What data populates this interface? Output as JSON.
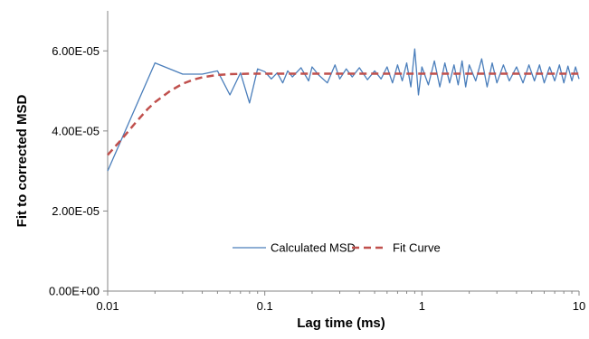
{
  "chart_data": {
    "type": "line",
    "title": "",
    "xlabel": "Lag time (ms)",
    "ylabel": "Fit to corrected MSD",
    "x_scale": "log",
    "xlim": [
      0.01,
      10
    ],
    "ylim": [
      0,
      7e-05
    ],
    "grid": false,
    "legend_position": "inside-bottom-center",
    "x_ticks": [
      {
        "value": 0.01,
        "label": "0.01"
      },
      {
        "value": 0.1,
        "label": "0.1"
      },
      {
        "value": 1,
        "label": "1"
      },
      {
        "value": 10,
        "label": "10"
      }
    ],
    "y_ticks": [
      {
        "value": 0,
        "label": "0.00E+00"
      },
      {
        "value": 2e-05,
        "label": "2.00E-05"
      },
      {
        "value": 4e-05,
        "label": "4.00E-05"
      },
      {
        "value": 6e-05,
        "label": "6.00E-05"
      }
    ],
    "series": [
      {
        "name": "Calculated MSD",
        "color": "#4a7ebb",
        "style": "solid",
        "x": [
          0.01,
          0.02,
          0.03,
          0.04,
          0.05,
          0.06,
          0.07,
          0.08,
          0.09,
          0.1,
          0.11,
          0.12,
          0.13,
          0.14,
          0.15,
          0.17,
          0.19,
          0.2,
          0.22,
          0.25,
          0.28,
          0.3,
          0.33,
          0.36,
          0.4,
          0.45,
          0.5,
          0.55,
          0.6,
          0.65,
          0.7,
          0.75,
          0.8,
          0.85,
          0.9,
          0.95,
          1.0,
          1.1,
          1.2,
          1.3,
          1.4,
          1.5,
          1.6,
          1.7,
          1.8,
          1.9,
          2.0,
          2.2,
          2.4,
          2.6,
          2.8,
          3.0,
          3.3,
          3.6,
          4.0,
          4.4,
          4.8,
          5.2,
          5.6,
          6.0,
          6.5,
          7.0,
          7.5,
          8.0,
          8.5,
          9.0,
          9.5,
          10.0
        ],
        "y": [
          3e-05,
          5.7e-05,
          5.42e-05,
          5.42e-05,
          5.5e-05,
          4.9e-05,
          5.45e-05,
          4.7e-05,
          5.55e-05,
          5.48e-05,
          5.3e-05,
          5.45e-05,
          5.2e-05,
          5.5e-05,
          5.35e-05,
          5.58e-05,
          5.25e-05,
          5.6e-05,
          5.4e-05,
          5.2e-05,
          5.65e-05,
          5.3e-05,
          5.55e-05,
          5.35e-05,
          5.58e-05,
          5.28e-05,
          5.5e-05,
          5.3e-05,
          5.6e-05,
          5.2e-05,
          5.65e-05,
          5.25e-05,
          5.7e-05,
          5.1e-05,
          6.05e-05,
          4.9e-05,
          5.6e-05,
          5.15e-05,
          5.75e-05,
          5.1e-05,
          5.7e-05,
          5.2e-05,
          5.65e-05,
          5.15e-05,
          5.75e-05,
          5.1e-05,
          5.65e-05,
          5.25e-05,
          5.8e-05,
          5.1e-05,
          5.7e-05,
          5.2e-05,
          5.65e-05,
          5.25e-05,
          5.6e-05,
          5.2e-05,
          5.65e-05,
          5.25e-05,
          5.65e-05,
          5.2e-05,
          5.6e-05,
          5.25e-05,
          5.65e-05,
          5.2e-05,
          5.62e-05,
          5.25e-05,
          5.6e-05,
          5.3e-05
        ]
      },
      {
        "name": "Fit Curve",
        "color": "#c0504d",
        "style": "dashed",
        "x": [
          0.01,
          0.012,
          0.015,
          0.018,
          0.02,
          0.025,
          0.03,
          0.035,
          0.04,
          0.05,
          0.06,
          0.08,
          0.1,
          0.2,
          0.5,
          1,
          2,
          5,
          10
        ],
        "y": [
          3.4e-05,
          3.75e-05,
          4.2e-05,
          4.55e-05,
          4.72e-05,
          5e-05,
          5.18e-05,
          5.28e-05,
          5.34e-05,
          5.4e-05,
          5.42e-05,
          5.43e-05,
          5.43e-05,
          5.43e-05,
          5.43e-05,
          5.43e-05,
          5.43e-05,
          5.43e-05,
          5.43e-05
        ]
      }
    ]
  }
}
